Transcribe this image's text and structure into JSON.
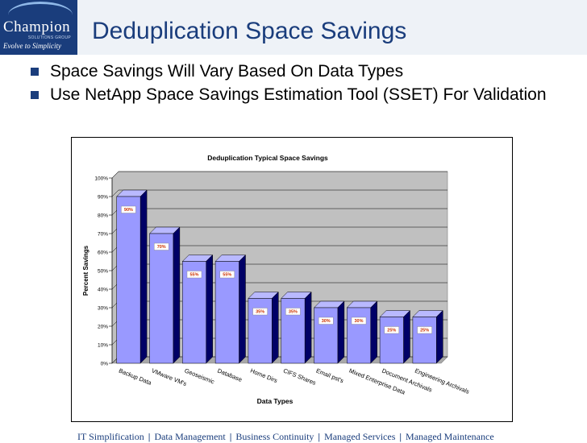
{
  "logo": {
    "name": "Champion",
    "sub": "SOLUTIONS GROUP",
    "tagline": "Evolve to Simplicity"
  },
  "slide": {
    "title": "Deduplication Space Savings",
    "bullets": [
      "Space Savings Will Vary Based On Data Types",
      "Use NetApp Space Savings Estimation Tool (SSET) For Validation"
    ]
  },
  "chart_data": {
    "type": "bar",
    "title": "Deduplication Typical Space Savings",
    "xlabel": "Data Types",
    "ylabel": "Percent Savings",
    "ylim": [
      0,
      100
    ],
    "yticks": [
      "0%",
      "10%",
      "20%",
      "30%",
      "40%",
      "50%",
      "60%",
      "70%",
      "80%",
      "90%",
      "100%"
    ],
    "categories": [
      "Backup Data",
      "VMware VM's",
      "Geoseismic",
      "Database",
      "Home Dirs",
      "CIFS Shares",
      "Email pst's",
      "Mixed Enterprise Data",
      "Document Archivals",
      "Engineering Archivals"
    ],
    "values": [
      90,
      70,
      55,
      55,
      35,
      35,
      30,
      30,
      25,
      25
    ],
    "data_labels": [
      "90%",
      "70%",
      "55%",
      "55%",
      "35%",
      "35%",
      "30%",
      "30%",
      "25%",
      "25%"
    ],
    "grid": true,
    "colors": {
      "bar": "#9999ff",
      "bar_top": "#b9b9ff",
      "bar_side": "#000066",
      "label": "#cc3300",
      "plot_bg": "#c0c0c0"
    }
  },
  "footer": {
    "items": [
      "IT Simplification",
      "Data Management",
      "Business Continuity",
      "Managed Services",
      "Managed Maintenance"
    ],
    "separator": "|"
  }
}
